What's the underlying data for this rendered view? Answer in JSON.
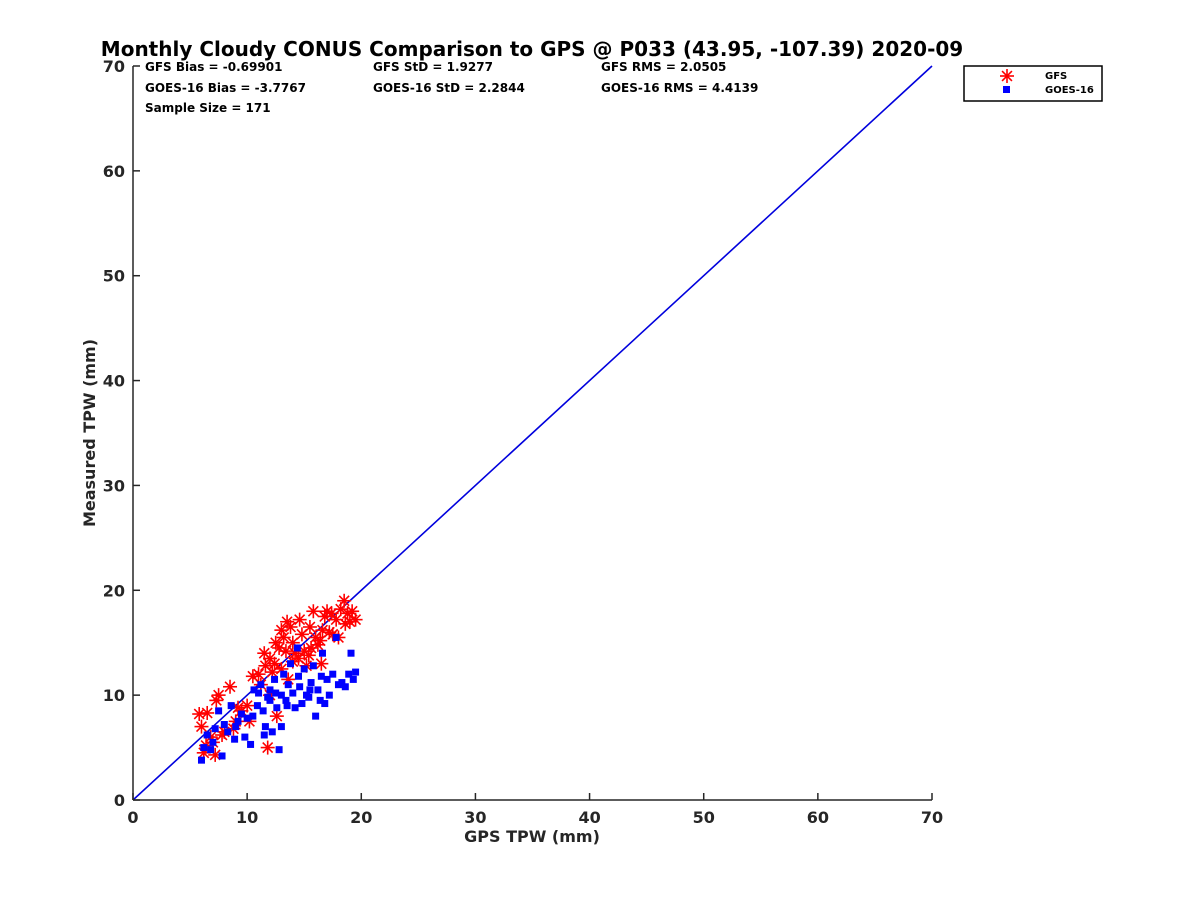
{
  "chart_data": {
    "type": "scatter",
    "title": "Monthly Cloudy CONUS Comparison to GPS @ P033 (43.95, -107.39) 2020-09",
    "xlabel": "GPS TPW (mm)",
    "ylabel": "Measured TPW (mm)",
    "xlim": [
      0,
      70
    ],
    "ylim": [
      0,
      70
    ],
    "xticks": [
      "0",
      "10",
      "20",
      "30",
      "40",
      "50",
      "60",
      "70"
    ],
    "yticks": [
      "0",
      "10",
      "20",
      "30",
      "40",
      "50",
      "60",
      "70"
    ],
    "grid": false,
    "legend_position": "top-right",
    "stats": {
      "gfs_bias": "GFS Bias = -0.69901",
      "gfs_std": "GFS StD = 1.9277",
      "gfs_rms": "GFS RMS = 2.0505",
      "goes_bias": "GOES-16 Bias = -3.7767",
      "goes_std": "GOES-16 StD = 2.2844",
      "goes_rms": "GOES-16 RMS = 4.4139",
      "sample_size": "Sample Size = 171"
    },
    "reference_line": {
      "x": [
        0,
        70
      ],
      "y": [
        0,
        70
      ],
      "color": "#0000dd"
    },
    "series": [
      {
        "name": "GFS",
        "marker": "asterisk",
        "color": "#ff0000",
        "points": [
          [
            5.8,
            8.2
          ],
          [
            6.0,
            7.0
          ],
          [
            6.2,
            4.5
          ],
          [
            6.5,
            8.3
          ],
          [
            6.8,
            6.0
          ],
          [
            7.0,
            5.5
          ],
          [
            7.3,
            9.5
          ],
          [
            7.5,
            10.0
          ],
          [
            7.2,
            4.3
          ],
          [
            8.0,
            6.5
          ],
          [
            8.5,
            10.8
          ],
          [
            9.0,
            7.5
          ],
          [
            9.5,
            8.5
          ],
          [
            10.0,
            9.0
          ],
          [
            10.5,
            11.8
          ],
          [
            11.0,
            12.0
          ],
          [
            11.5,
            14.0
          ],
          [
            11.8,
            5.0
          ],
          [
            12.0,
            13.5
          ],
          [
            12.2,
            12.2
          ],
          [
            12.5,
            15.0
          ],
          [
            12.8,
            14.5
          ],
          [
            13.0,
            16.2
          ],
          [
            13.2,
            15.5
          ],
          [
            13.5,
            17.0
          ],
          [
            13.8,
            16.5
          ],
          [
            14.0,
            15.0
          ],
          [
            14.2,
            14.0
          ],
          [
            14.5,
            13.5
          ],
          [
            14.8,
            15.8
          ],
          [
            15.0,
            14.2
          ],
          [
            15.2,
            12.8
          ],
          [
            15.5,
            16.5
          ],
          [
            15.8,
            18.0
          ],
          [
            16.0,
            15.5
          ],
          [
            16.2,
            14.8
          ],
          [
            16.5,
            13.0
          ],
          [
            16.8,
            17.5
          ],
          [
            17.0,
            18.0
          ],
          [
            17.2,
            16.0
          ],
          [
            17.5,
            15.8
          ],
          [
            17.8,
            17.2
          ],
          [
            18.0,
            15.5
          ],
          [
            18.2,
            18.2
          ],
          [
            18.5,
            19.0
          ],
          [
            18.8,
            17.8
          ],
          [
            19.0,
            17.0
          ],
          [
            19.2,
            18.0
          ],
          [
            19.5,
            17.2
          ],
          [
            12.0,
            10.0
          ],
          [
            13.0,
            12.5
          ],
          [
            14.0,
            13.2
          ],
          [
            11.2,
            11.0
          ],
          [
            12.6,
            8.0
          ],
          [
            10.2,
            7.5
          ],
          [
            9.2,
            8.8
          ],
          [
            13.6,
            11.5
          ],
          [
            15.4,
            13.8
          ],
          [
            16.6,
            16.2
          ],
          [
            14.6,
            17.2
          ],
          [
            12.4,
            13.0
          ],
          [
            11.6,
            12.8
          ],
          [
            13.4,
            14.2
          ],
          [
            15.6,
            14.5
          ],
          [
            16.4,
            15.2
          ],
          [
            17.4,
            17.8
          ],
          [
            18.6,
            16.8
          ],
          [
            8.8,
            6.8
          ],
          [
            7.8,
            6.2
          ],
          [
            6.4,
            5.2
          ]
        ]
      },
      {
        "name": "GOES-16",
        "marker": "square",
        "color": "#0000ff",
        "points": [
          [
            6.0,
            3.8
          ],
          [
            6.2,
            5.0
          ],
          [
            6.5,
            6.2
          ],
          [
            6.8,
            4.8
          ],
          [
            7.0,
            5.5
          ],
          [
            7.2,
            6.8
          ],
          [
            7.5,
            8.5
          ],
          [
            7.8,
            4.2
          ],
          [
            8.0,
            7.2
          ],
          [
            8.3,
            6.5
          ],
          [
            8.6,
            9.0
          ],
          [
            8.9,
            5.8
          ],
          [
            9.2,
            7.5
          ],
          [
            9.5,
            8.2
          ],
          [
            9.8,
            6.0
          ],
          [
            10.0,
            7.8
          ],
          [
            10.3,
            5.3
          ],
          [
            10.6,
            10.5
          ],
          [
            10.9,
            9.0
          ],
          [
            11.2,
            11.0
          ],
          [
            11.4,
            8.5
          ],
          [
            11.6,
            7.0
          ],
          [
            11.8,
            9.8
          ],
          [
            12.0,
            10.5
          ],
          [
            12.2,
            6.5
          ],
          [
            12.4,
            11.5
          ],
          [
            12.6,
            8.8
          ],
          [
            12.8,
            4.8
          ],
          [
            13.0,
            10.0
          ],
          [
            13.2,
            12.0
          ],
          [
            13.4,
            9.5
          ],
          [
            13.6,
            11.0
          ],
          [
            13.8,
            13.0
          ],
          [
            14.0,
            10.2
          ],
          [
            14.2,
            8.8
          ],
          [
            14.4,
            14.5
          ],
          [
            14.6,
            10.8
          ],
          [
            14.8,
            9.2
          ],
          [
            15.0,
            12.5
          ],
          [
            15.2,
            10.0
          ],
          [
            15.4,
            9.8
          ],
          [
            15.6,
            11.2
          ],
          [
            15.8,
            12.8
          ],
          [
            16.0,
            8.0
          ],
          [
            16.2,
            10.5
          ],
          [
            16.4,
            9.5
          ],
          [
            16.6,
            14.0
          ],
          [
            16.8,
            9.2
          ],
          [
            17.0,
            11.5
          ],
          [
            17.2,
            10.0
          ],
          [
            17.5,
            12.0
          ],
          [
            17.8,
            15.5
          ],
          [
            18.0,
            11.0
          ],
          [
            18.3,
            11.2
          ],
          [
            18.6,
            10.8
          ],
          [
            18.9,
            12.0
          ],
          [
            19.1,
            14.0
          ],
          [
            19.3,
            11.5
          ],
          [
            19.5,
            12.2
          ],
          [
            12.0,
            9.5
          ],
          [
            11.0,
            10.2
          ],
          [
            13.5,
            9.0
          ],
          [
            14.5,
            11.8
          ],
          [
            12.5,
            10.2
          ],
          [
            13.0,
            7.0
          ],
          [
            11.5,
            6.2
          ],
          [
            10.5,
            8.0
          ],
          [
            9.0,
            7.0
          ],
          [
            15.5,
            10.5
          ],
          [
            16.5,
            11.8
          ]
        ]
      }
    ]
  }
}
